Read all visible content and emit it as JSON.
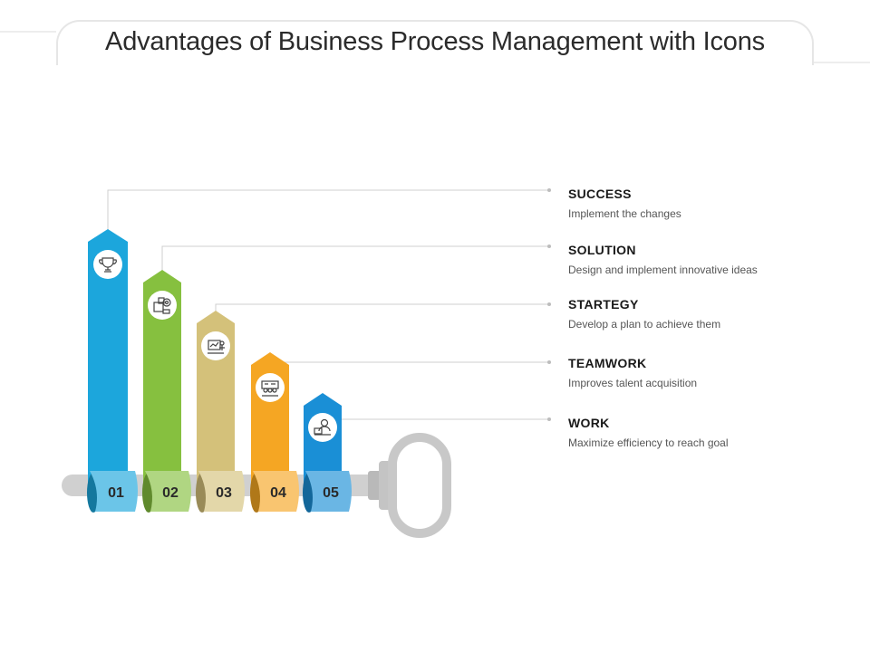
{
  "title": "Advantages of Business Process Management with Icons",
  "colors": {
    "blue": "#1ca6dc",
    "green": "#86c03f",
    "khaki": "#d4c17a",
    "orange": "#f5a623",
    "blue2": "#1a8fd6",
    "key": "#c8c8c8",
    "connector": "#cfcfcf"
  },
  "items": [
    {
      "number": "01",
      "title": "SUCCESS",
      "description": "Implement the changes",
      "icon": "trophy-icon",
      "color": "#1ca6dc"
    },
    {
      "number": "02",
      "title": "SOLUTION",
      "description": "Design and implement innovative ideas",
      "icon": "puzzle-gear-icon",
      "color": "#86c03f"
    },
    {
      "number": "03",
      "title": "STARTEGY",
      "description": "Develop a plan to achieve them",
      "icon": "strategy-board-icon",
      "color": "#d4c17a"
    },
    {
      "number": "04",
      "title": "TEAMWORK",
      "description": "Improves talent acquisition",
      "icon": "team-meeting-icon",
      "color": "#f5a623"
    },
    {
      "number": "05",
      "title": "WORK",
      "description": "Maximize efficiency to reach goal",
      "icon": "worker-desk-icon",
      "color": "#1a8fd6"
    }
  ]
}
